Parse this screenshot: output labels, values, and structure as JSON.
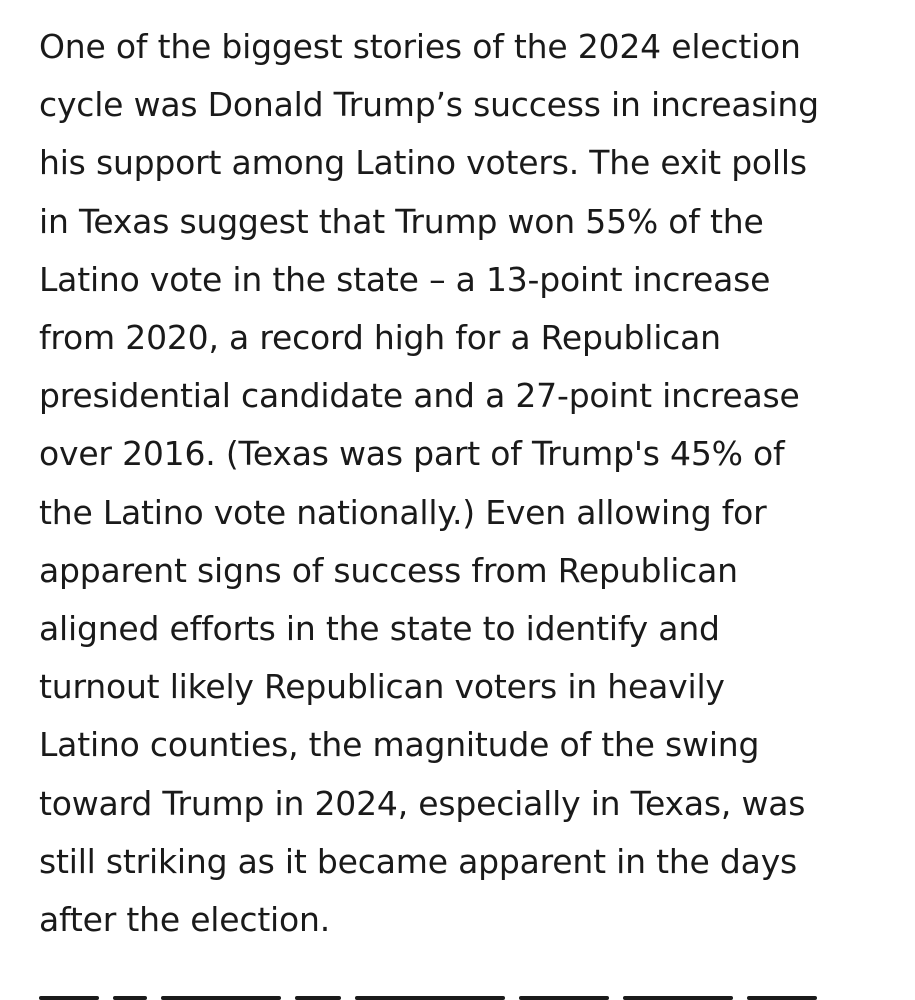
{
  "article": {
    "paragraph_lines": [
      "One of the biggest stories of the 2024 election",
      "cycle was Donald Trump’s success in increasing",
      "his support among Latino voters. The exit polls",
      "in Texas suggest that Trump won 55% of the",
      "Latino vote in the state – a 13-point increase",
      "from 2020, a record high for a Republican",
      "presidential candidate and a 27-point increase",
      "over 2016. (Texas was part of Trump's 45% of",
      "the Latino vote nationally.) Even allowing for",
      "apparent signs of success from Republican",
      "aligned efforts in the state to identify and",
      "turnout likely Republican voters in heavily",
      "Latino counties, the magnitude of the swing",
      "toward Trump in 2024, especially in Texas, was",
      "still striking as it became apparent in the days",
      "after the election."
    ]
  }
}
